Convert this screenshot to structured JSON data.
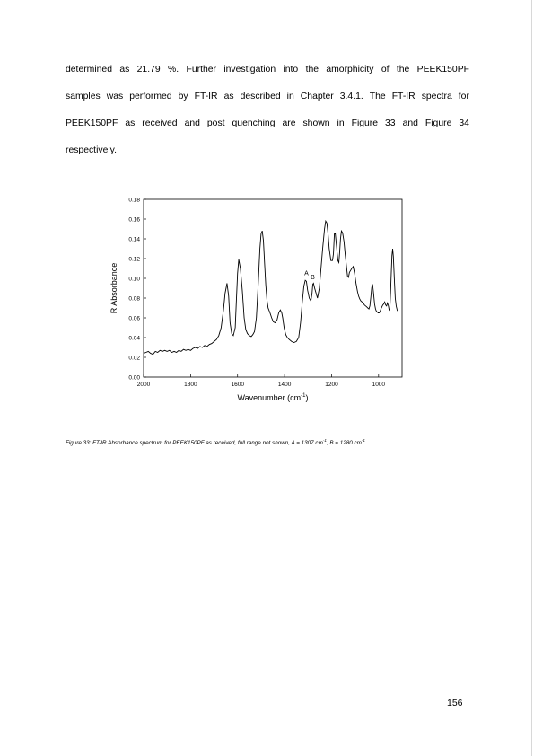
{
  "paragraph": {
    "lines": [
      [
        "determined",
        "as",
        "21.79",
        "%.",
        "Further",
        "investigation",
        "into",
        "the",
        "amorphicity",
        "of",
        "the",
        "PEEK150PF"
      ],
      [
        "samples",
        "was",
        "performed",
        "by",
        "FT-IR",
        "as",
        "described",
        "in",
        "Chapter",
        "3.4.1.",
        "The",
        "FT-IR",
        "spectra",
        "for"
      ],
      [
        "PEEK150PF",
        "as",
        "received",
        "and",
        "post",
        "quenching",
        "are",
        "shown",
        "in",
        "Figure",
        "33",
        "and",
        "Figure",
        "34"
      ],
      [
        "respectively."
      ]
    ]
  },
  "chart_data": {
    "type": "line",
    "title": "",
    "xlabel": "Wavenumber (cm",
    "xlabel_sup": "-1",
    "xlabel_close": ")",
    "ylabel": "R Absorbance",
    "xlim": [
      2000,
      900
    ],
    "ylim": [
      0,
      0.18
    ],
    "x_ticks": [
      2000,
      1800,
      1600,
      1400,
      1200,
      1000
    ],
    "x_tick_labels": [
      "2000",
      "1800",
      "1600",
      "1400",
      "1200",
      "1000"
    ],
    "y_ticks": [
      0,
      0.02,
      0.04,
      0.06,
      0.08,
      0.1,
      0.12,
      0.14,
      0.16,
      0.18
    ],
    "y_tick_labels": [
      "0.00",
      "0.02",
      "0.04",
      "0.06",
      "0.08",
      "0.10",
      "0.12",
      "0.14",
      "0.16",
      "0.18"
    ],
    "grid": false,
    "legend": "none",
    "annotations": [
      {
        "text": "A",
        "x": 1307,
        "y": 0.103
      },
      {
        "text": "B",
        "x": 1280,
        "y": 0.099
      }
    ],
    "series": [
      {
        "color": "#000000",
        "x": [
          2000,
          1990,
          1980,
          1970,
          1960,
          1950,
          1940,
          1930,
          1920,
          1910,
          1900,
          1890,
          1880,
          1870,
          1860,
          1850,
          1840,
          1830,
          1820,
          1810,
          1800,
          1790,
          1780,
          1770,
          1760,
          1750,
          1740,
          1730,
          1720,
          1710,
          1700,
          1690,
          1680,
          1670,
          1660,
          1653,
          1645,
          1638,
          1632,
          1625,
          1618,
          1610,
          1605,
          1600,
          1595,
          1588,
          1580,
          1572,
          1565,
          1558,
          1550,
          1542,
          1535,
          1528,
          1520,
          1512,
          1505,
          1500,
          1495,
          1490,
          1485,
          1480,
          1475,
          1470,
          1462,
          1455,
          1448,
          1440,
          1432,
          1425,
          1418,
          1412,
          1408,
          1402,
          1395,
          1388,
          1380,
          1370,
          1360,
          1350,
          1340,
          1332,
          1325,
          1318,
          1312,
          1307,
          1302,
          1295,
          1288,
          1283,
          1280,
          1277,
          1272,
          1266,
          1260,
          1252,
          1245,
          1238,
          1230,
          1225,
          1220,
          1215,
          1210,
          1203,
          1196,
          1192,
          1190,
          1188,
          1184,
          1178,
          1173,
          1169,
          1166,
          1162,
          1158,
          1153,
          1147,
          1142,
          1137,
          1132,
          1128,
          1124,
          1119,
          1114,
          1108,
          1102,
          1096,
          1090,
          1085,
          1080,
          1075,
          1070,
          1065,
          1060,
          1055,
          1050,
          1046,
          1041,
          1037,
          1033,
          1029,
          1025,
          1021,
          1017,
          1013,
          1010,
          1006,
          1002,
          998,
          994,
          990,
          986,
          982,
          978,
          974,
          970,
          966,
          962,
          958,
          955,
          952,
          949,
          946,
          943,
          940,
          937,
          933,
          929,
          925,
          920
        ],
        "y": [
          0.024,
          0.025,
          0.026,
          0.024,
          0.023,
          0.026,
          0.025,
          0.027,
          0.026,
          0.027,
          0.026,
          0.027,
          0.025,
          0.026,
          0.025,
          0.027,
          0.026,
          0.028,
          0.027,
          0.028,
          0.027,
          0.029,
          0.03,
          0.029,
          0.031,
          0.03,
          0.032,
          0.031,
          0.033,
          0.034,
          0.036,
          0.038,
          0.042,
          0.05,
          0.068,
          0.085,
          0.095,
          0.082,
          0.055,
          0.044,
          0.042,
          0.05,
          0.078,
          0.105,
          0.119,
          0.11,
          0.088,
          0.06,
          0.048,
          0.044,
          0.042,
          0.041,
          0.043,
          0.046,
          0.06,
          0.095,
          0.13,
          0.145,
          0.148,
          0.138,
          0.115,
          0.093,
          0.078,
          0.07,
          0.065,
          0.06,
          0.056,
          0.055,
          0.058,
          0.065,
          0.068,
          0.065,
          0.06,
          0.05,
          0.043,
          0.04,
          0.038,
          0.036,
          0.035,
          0.036,
          0.04,
          0.055,
          0.075,
          0.092,
          0.098,
          0.097,
          0.088,
          0.08,
          0.077,
          0.085,
          0.094,
          0.095,
          0.09,
          0.085,
          0.08,
          0.09,
          0.11,
          0.13,
          0.15,
          0.158,
          0.156,
          0.145,
          0.13,
          0.118,
          0.118,
          0.125,
          0.135,
          0.145,
          0.145,
          0.13,
          0.118,
          0.116,
          0.125,
          0.14,
          0.148,
          0.146,
          0.137,
          0.124,
          0.113,
          0.102,
          0.101,
          0.106,
          0.108,
          0.11,
          0.112,
          0.105,
          0.095,
          0.087,
          0.082,
          0.079,
          0.077,
          0.076,
          0.075,
          0.073,
          0.072,
          0.071,
          0.07,
          0.069,
          0.072,
          0.081,
          0.091,
          0.093,
          0.084,
          0.074,
          0.069,
          0.067,
          0.066,
          0.065,
          0.065,
          0.066,
          0.069,
          0.071,
          0.073,
          0.074,
          0.076,
          0.073,
          0.072,
          0.075,
          0.072,
          0.068,
          0.069,
          0.085,
          0.105,
          0.123,
          0.13,
          0.122,
          0.1,
          0.08,
          0.072,
          0.067
        ]
      }
    ]
  },
  "caption": {
    "text1": "Figure 33: FT-IR Absorbance spectrum for PEEK150PF as received, full range not shown, A = 1307 cm",
    "sup1": "-1",
    "text2": ", B = 1280 cm",
    "sup2": "-1"
  },
  "page_number": "156"
}
